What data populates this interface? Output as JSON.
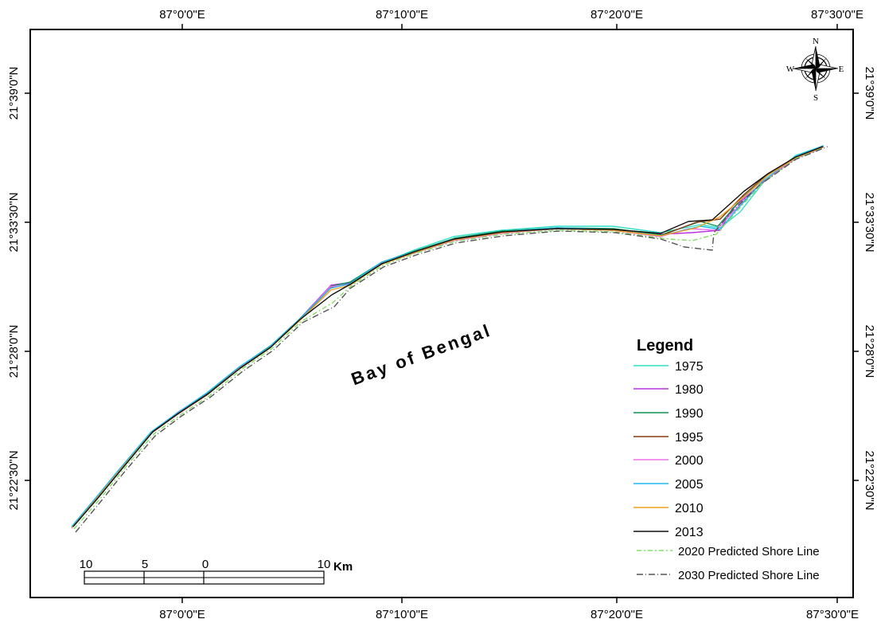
{
  "grid": {
    "top_labels": [
      "87°0'0\"E",
      "87°10'0\"E",
      "87°20'0\"E",
      "87°30'0\"E"
    ],
    "bottom_labels": [
      "87°0'0\"E",
      "87°10'0\"E",
      "87°20'0\"E",
      "87°30'0\"E"
    ],
    "left_labels": [
      "21°39'0\"N",
      "21°33'30\"N",
      "21°28'0\"N",
      "21°22'30\"N"
    ],
    "right_labels": [
      "21°39'0\"N",
      "21°33'30\"N",
      "21°28'0\"N",
      "21°22'30\"N"
    ]
  },
  "sea_label": "Bay of Bengal",
  "north_arrow": {
    "n": "N",
    "s": "S",
    "e": "E",
    "w": "W"
  },
  "legend": {
    "title": "Legend",
    "items": [
      {
        "label": "1975",
        "color": "#30e0c8",
        "dash": ""
      },
      {
        "label": "1980",
        "color": "#b830e0",
        "dash": ""
      },
      {
        "label": "1990",
        "color": "#109050",
        "dash": ""
      },
      {
        "label": "1995",
        "color": "#8a3a14",
        "dash": ""
      },
      {
        "label": "2000",
        "color": "#f070f0",
        "dash": ""
      },
      {
        "label": "2005",
        "color": "#20b8f0",
        "dash": ""
      },
      {
        "label": "2010",
        "color": "#f0a020",
        "dash": ""
      },
      {
        "label": "2013",
        "color": "#111111",
        "dash": ""
      },
      {
        "label": "2020 Predicted Shore Line",
        "color": "#80e060",
        "dash": "6,3,2,3"
      },
      {
        "label": "2030 Predicted Shore Line",
        "color": "#555555",
        "dash": "8,3,1,3"
      }
    ]
  },
  "scale_bar": {
    "labels": [
      "10",
      "5",
      "0",
      "10"
    ],
    "unit": "Km"
  }
}
